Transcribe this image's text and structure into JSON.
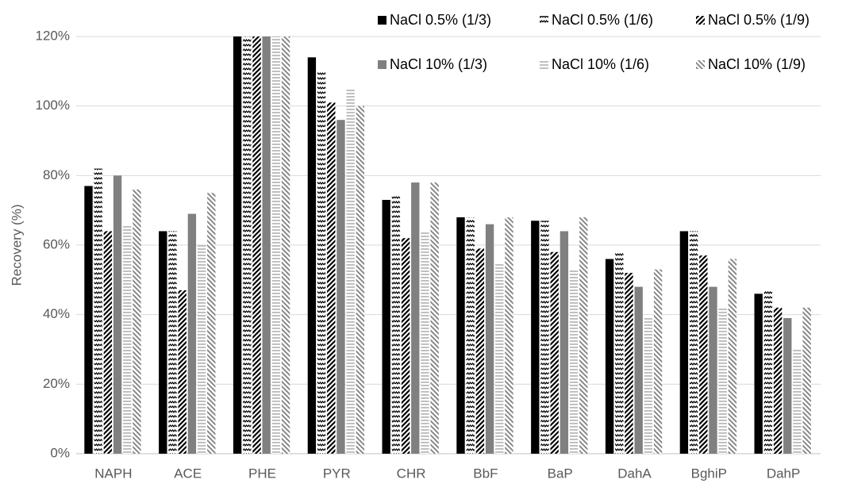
{
  "chart_data": {
    "type": "bar",
    "y_label": "Recovery (%)",
    "categories": [
      "NAPH",
      "ACE",
      "PHE",
      "PYR",
      "CHR",
      "BbF",
      "BaP",
      "DahA",
      "BghiP",
      "DahP"
    ],
    "series": [
      {
        "name": "NaCl 0.5% (1/3)",
        "color": "#000000",
        "pattern": "solid",
        "values": [
          77,
          64,
          120,
          114,
          73,
          68,
          67,
          56,
          64,
          46
        ]
      },
      {
        "name": "NaCl 0.5% (1/6)",
        "color": "#000000",
        "pattern": "zigzag",
        "values": [
          82,
          64,
          120,
          110,
          74,
          68,
          67,
          58,
          64,
          47
        ]
      },
      {
        "name": "NaCl 0.5% (1/9)",
        "color": "#000000",
        "pattern": "diagonal",
        "values": [
          64,
          47,
          120,
          101,
          62,
          59,
          58,
          52,
          57,
          42
        ]
      },
      {
        "name": "NaCl 10% (1/3)",
        "color": "#808080",
        "pattern": "solid",
        "values": [
          80,
          69,
          120,
          96,
          78,
          66,
          64,
          48,
          48,
          39
        ]
      },
      {
        "name": "NaCl 10% (1/6)",
        "color": "#808080",
        "pattern": "horizontal",
        "values": [
          66,
          60,
          120,
          105,
          64,
          55,
          53,
          39,
          42,
          30
        ]
      },
      {
        "name": "NaCl 10% (1/9)",
        "color": "#808080",
        "pattern": "diagonal-reverse",
        "values": [
          76,
          75,
          120,
          100,
          78,
          68,
          68,
          53,
          56,
          42
        ]
      }
    ],
    "ylim": [
      0,
      120
    ],
    "yticks": [
      {
        "value": 0,
        "label": "0%"
      },
      {
        "value": 20,
        "label": "20%"
      },
      {
        "value": 40,
        "label": "40%"
      },
      {
        "value": 60,
        "label": "60%"
      },
      {
        "value": 80,
        "label": "80%"
      },
      {
        "value": 100,
        "label": "100%"
      },
      {
        "value": 120,
        "label": "120%"
      }
    ],
    "grid": true,
    "legend": "top-right"
  }
}
